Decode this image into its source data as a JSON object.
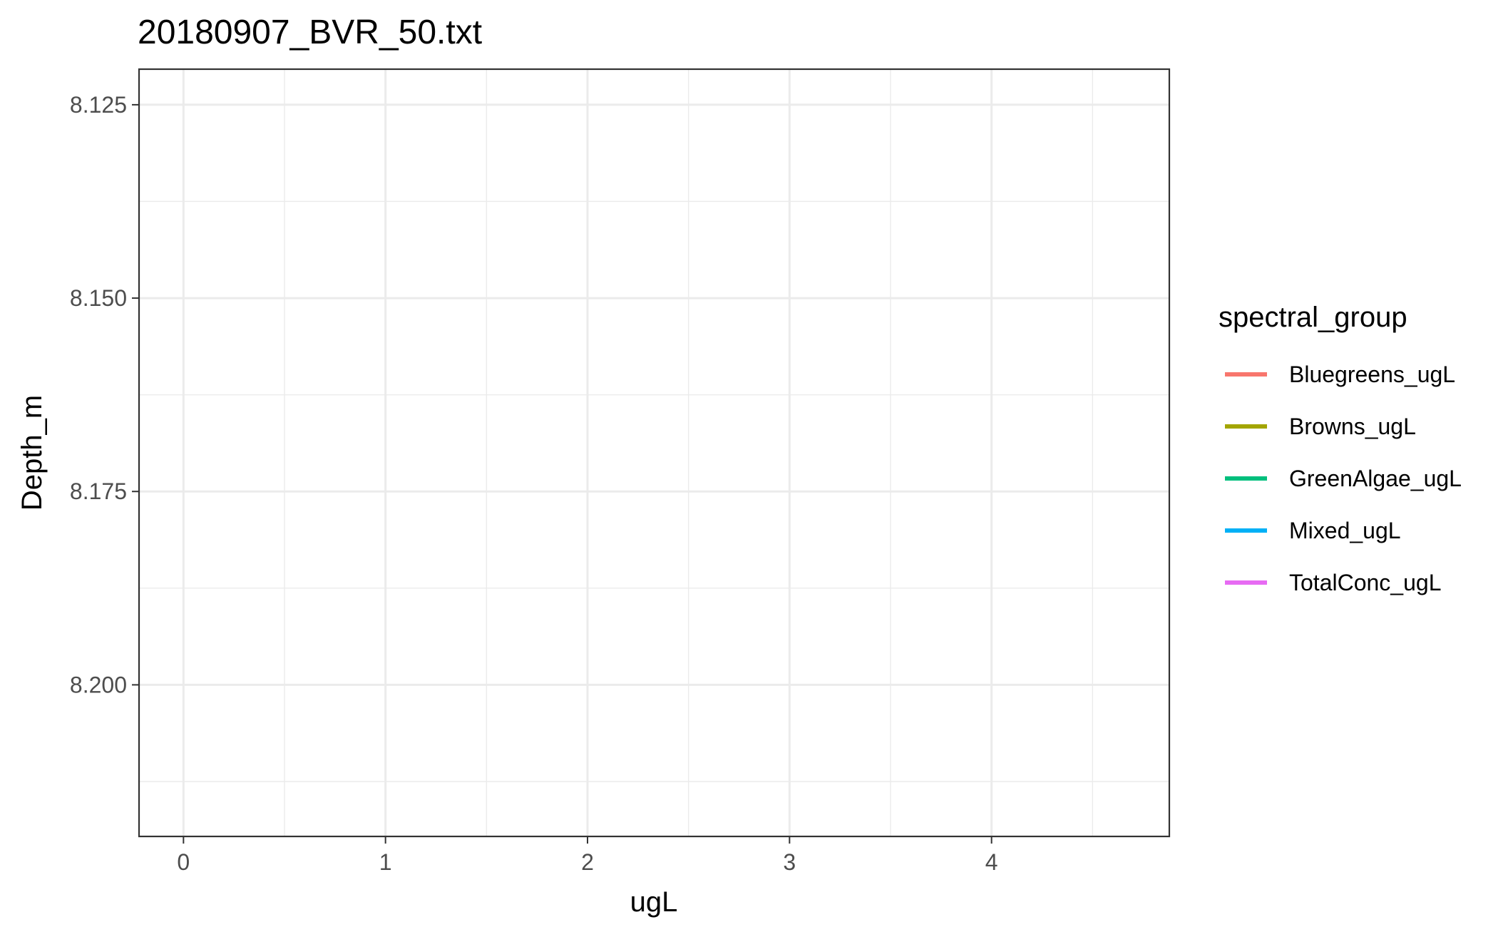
{
  "chart_data": {
    "type": "line",
    "title": "20180907_BVR_50.txt",
    "xlabel": "ugL",
    "ylabel": "Depth_m",
    "xlim": [
      -0.22,
      4.88
    ],
    "ylim": [
      8.2196,
      8.1204
    ],
    "y_reversed": true,
    "x_ticks": [
      {
        "value": 0,
        "label": "0"
      },
      {
        "value": 1,
        "label": "1"
      },
      {
        "value": 2,
        "label": "2"
      },
      {
        "value": 3,
        "label": "3"
      },
      {
        "value": 4,
        "label": "4"
      }
    ],
    "x_minor_ticks": [
      0.5,
      1.5,
      2.5,
      3.5,
      4.5
    ],
    "y_ticks": [
      {
        "value": 8.125,
        "label": "8.125"
      },
      {
        "value": 8.15,
        "label": "8.150"
      },
      {
        "value": 8.175,
        "label": "8.175"
      },
      {
        "value": 8.2,
        "label": "8.200"
      }
    ],
    "y_minor_ticks": [
      8.1375,
      8.1625,
      8.1875,
      8.2125
    ],
    "grid": true,
    "legend": {
      "title": "spectral_group",
      "placement": "right"
    },
    "series": [
      {
        "name": "Bluegreens_ugL",
        "color": "#F8766D",
        "values": []
      },
      {
        "name": "Browns_ugL",
        "color": "#A3A500",
        "values": []
      },
      {
        "name": "GreenAlgae_ugL",
        "color": "#00BF7D",
        "values": []
      },
      {
        "name": "Mixed_ugL",
        "color": "#00B0F6",
        "values": []
      },
      {
        "name": "TotalConc_ugL",
        "color": "#E76BF3",
        "values": []
      }
    ]
  }
}
